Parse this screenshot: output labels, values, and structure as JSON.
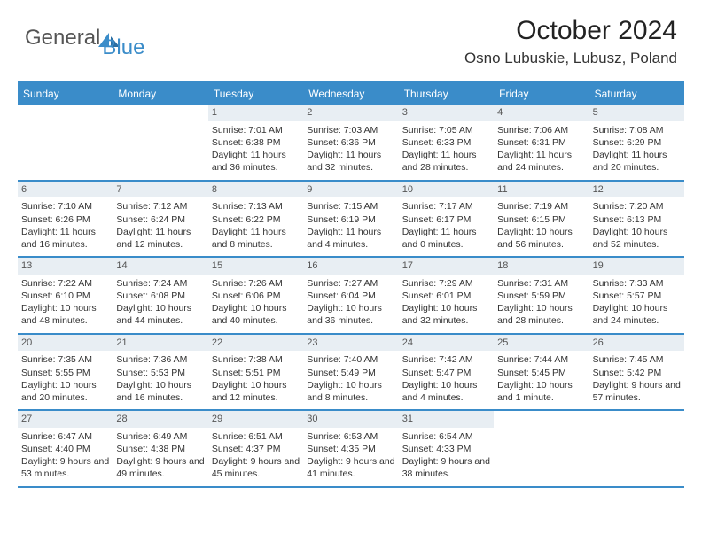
{
  "brand": {
    "part1": "General",
    "part2": "Blue"
  },
  "title": "October 2024",
  "location": "Osno Lubuskie, Lubusz, Poland",
  "colors": {
    "accent": "#3a8cc9",
    "daynum_bg": "#e8eef3",
    "text": "#333333",
    "bg": "#ffffff"
  },
  "day_headers": [
    "Sunday",
    "Monday",
    "Tuesday",
    "Wednesday",
    "Thursday",
    "Friday",
    "Saturday"
  ],
  "weeks": [
    [
      {
        "empty": true
      },
      {
        "empty": true
      },
      {
        "n": "1",
        "sunrise": "7:01 AM",
        "sunset": "6:38 PM",
        "daylight": "11 hours and 36 minutes."
      },
      {
        "n": "2",
        "sunrise": "7:03 AM",
        "sunset": "6:36 PM",
        "daylight": "11 hours and 32 minutes."
      },
      {
        "n": "3",
        "sunrise": "7:05 AM",
        "sunset": "6:33 PM",
        "daylight": "11 hours and 28 minutes."
      },
      {
        "n": "4",
        "sunrise": "7:06 AM",
        "sunset": "6:31 PM",
        "daylight": "11 hours and 24 minutes."
      },
      {
        "n": "5",
        "sunrise": "7:08 AM",
        "sunset": "6:29 PM",
        "daylight": "11 hours and 20 minutes."
      }
    ],
    [
      {
        "n": "6",
        "sunrise": "7:10 AM",
        "sunset": "6:26 PM",
        "daylight": "11 hours and 16 minutes."
      },
      {
        "n": "7",
        "sunrise": "7:12 AM",
        "sunset": "6:24 PM",
        "daylight": "11 hours and 12 minutes."
      },
      {
        "n": "8",
        "sunrise": "7:13 AM",
        "sunset": "6:22 PM",
        "daylight": "11 hours and 8 minutes."
      },
      {
        "n": "9",
        "sunrise": "7:15 AM",
        "sunset": "6:19 PM",
        "daylight": "11 hours and 4 minutes."
      },
      {
        "n": "10",
        "sunrise": "7:17 AM",
        "sunset": "6:17 PM",
        "daylight": "11 hours and 0 minutes."
      },
      {
        "n": "11",
        "sunrise": "7:19 AM",
        "sunset": "6:15 PM",
        "daylight": "10 hours and 56 minutes."
      },
      {
        "n": "12",
        "sunrise": "7:20 AM",
        "sunset": "6:13 PM",
        "daylight": "10 hours and 52 minutes."
      }
    ],
    [
      {
        "n": "13",
        "sunrise": "7:22 AM",
        "sunset": "6:10 PM",
        "daylight": "10 hours and 48 minutes."
      },
      {
        "n": "14",
        "sunrise": "7:24 AM",
        "sunset": "6:08 PM",
        "daylight": "10 hours and 44 minutes."
      },
      {
        "n": "15",
        "sunrise": "7:26 AM",
        "sunset": "6:06 PM",
        "daylight": "10 hours and 40 minutes."
      },
      {
        "n": "16",
        "sunrise": "7:27 AM",
        "sunset": "6:04 PM",
        "daylight": "10 hours and 36 minutes."
      },
      {
        "n": "17",
        "sunrise": "7:29 AM",
        "sunset": "6:01 PM",
        "daylight": "10 hours and 32 minutes."
      },
      {
        "n": "18",
        "sunrise": "7:31 AM",
        "sunset": "5:59 PM",
        "daylight": "10 hours and 28 minutes."
      },
      {
        "n": "19",
        "sunrise": "7:33 AM",
        "sunset": "5:57 PM",
        "daylight": "10 hours and 24 minutes."
      }
    ],
    [
      {
        "n": "20",
        "sunrise": "7:35 AM",
        "sunset": "5:55 PM",
        "daylight": "10 hours and 20 minutes."
      },
      {
        "n": "21",
        "sunrise": "7:36 AM",
        "sunset": "5:53 PM",
        "daylight": "10 hours and 16 minutes."
      },
      {
        "n": "22",
        "sunrise": "7:38 AM",
        "sunset": "5:51 PM",
        "daylight": "10 hours and 12 minutes."
      },
      {
        "n": "23",
        "sunrise": "7:40 AM",
        "sunset": "5:49 PM",
        "daylight": "10 hours and 8 minutes."
      },
      {
        "n": "24",
        "sunrise": "7:42 AM",
        "sunset": "5:47 PM",
        "daylight": "10 hours and 4 minutes."
      },
      {
        "n": "25",
        "sunrise": "7:44 AM",
        "sunset": "5:45 PM",
        "daylight": "10 hours and 1 minute."
      },
      {
        "n": "26",
        "sunrise": "7:45 AM",
        "sunset": "5:42 PM",
        "daylight": "9 hours and 57 minutes."
      }
    ],
    [
      {
        "n": "27",
        "sunrise": "6:47 AM",
        "sunset": "4:40 PM",
        "daylight": "9 hours and 53 minutes."
      },
      {
        "n": "28",
        "sunrise": "6:49 AM",
        "sunset": "4:38 PM",
        "daylight": "9 hours and 49 minutes."
      },
      {
        "n": "29",
        "sunrise": "6:51 AM",
        "sunset": "4:37 PM",
        "daylight": "9 hours and 45 minutes."
      },
      {
        "n": "30",
        "sunrise": "6:53 AM",
        "sunset": "4:35 PM",
        "daylight": "9 hours and 41 minutes."
      },
      {
        "n": "31",
        "sunrise": "6:54 AM",
        "sunset": "4:33 PM",
        "daylight": "9 hours and 38 minutes."
      },
      {
        "empty": true
      },
      {
        "empty": true
      }
    ]
  ],
  "labels": {
    "sunrise": "Sunrise:",
    "sunset": "Sunset:",
    "daylight": "Daylight:"
  }
}
